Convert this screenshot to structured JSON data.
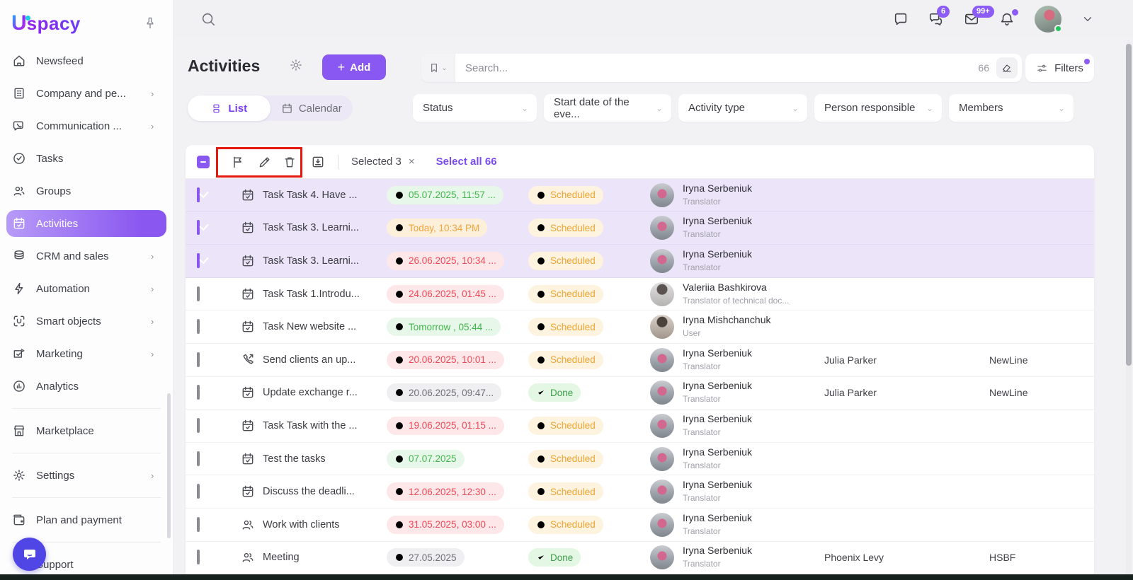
{
  "colors": {
    "accent": "#8957f1",
    "badge": "#8b5cf6",
    "scheduled": "#f0a432",
    "done": "#3da048",
    "date_green": "#41b64c",
    "date_orange": "#f2a33c",
    "date_red": "#ee4956",
    "annotation_red": "#e3180f"
  },
  "brand": {
    "u": "U",
    "rest": "spacy"
  },
  "topbar": {
    "messenger_badge": "6",
    "mail_badge": "99+"
  },
  "sidebar": {
    "items": [
      {
        "label": "Newsfeed",
        "icon": "home",
        "chevron": false
      },
      {
        "label": "Company and pe...",
        "icon": "building",
        "chevron": true
      },
      {
        "label": "Communication ...",
        "icon": "comm",
        "chevron": true
      },
      {
        "label": "Tasks",
        "icon": "check-circle",
        "chevron": false
      },
      {
        "label": "Groups",
        "icon": "users",
        "chevron": false
      },
      {
        "label": "Activities",
        "icon": "cal-check",
        "chevron": false,
        "active": true
      },
      {
        "label": "CRM and sales",
        "icon": "db",
        "chevron": true
      },
      {
        "label": "Automation",
        "icon": "bolt",
        "chevron": true
      },
      {
        "label": "Smart objects",
        "icon": "smart",
        "chevron": true
      },
      {
        "label": "Marketing",
        "icon": "marketing",
        "chevron": true
      },
      {
        "label": "Analytics",
        "icon": "analytics",
        "chevron": false
      },
      {
        "divider": true
      },
      {
        "label": "Marketplace",
        "icon": "store",
        "chevron": false
      },
      {
        "divider": true
      },
      {
        "label": "Settings",
        "icon": "gear",
        "chevron": true
      },
      {
        "divider": true
      },
      {
        "label": "Plan and payment",
        "icon": "wallet",
        "chevron": false
      },
      {
        "divider": true
      },
      {
        "label": "Support",
        "icon": "none",
        "chevron": false
      }
    ]
  },
  "page": {
    "title": "Activities",
    "add_label": "Add",
    "plus": "+"
  },
  "tabs": {
    "list": "List",
    "calendar": "Calendar"
  },
  "search": {
    "placeholder": "Search...",
    "count": "66",
    "filters_label": "Filters"
  },
  "filters": [
    "Status",
    "Start date of the eve...",
    "Activity type",
    "Person responsible",
    "Members"
  ],
  "toolbar": {
    "selected_label": "Selected 3",
    "close": "×",
    "select_all_label": "Select all 66",
    "divider": "|"
  },
  "table": {
    "rows": [
      {
        "selected": true,
        "type": "task",
        "title": "Task Task 4. Have ...",
        "date": "05.07.2025, 11:57 ...",
        "date_color": "green",
        "status": "Scheduled",
        "status_variant": "scheduled",
        "person": "Iryna Serbeniuk",
        "role": "Translator",
        "avatar": "iryna",
        "contact": "",
        "company": ""
      },
      {
        "selected": true,
        "type": "task",
        "title": "Task Task 3. Learni...",
        "date": "Today, 10:34 PM",
        "date_color": "orange",
        "status": "Scheduled",
        "status_variant": "scheduled",
        "person": "Iryna Serbeniuk",
        "role": "Translator",
        "avatar": "iryna",
        "contact": "",
        "company": ""
      },
      {
        "selected": true,
        "type": "task",
        "title": "Task Task 3. Learni...",
        "date": "26.06.2025, 10:34 ...",
        "date_color": "red",
        "status": "Scheduled",
        "status_variant": "scheduled",
        "person": "Iryna Serbeniuk",
        "role": "Translator",
        "avatar": "iryna",
        "contact": "",
        "company": ""
      },
      {
        "selected": false,
        "type": "task",
        "title": "Task Task 1.Introdu...",
        "date": "24.06.2025, 01:45 ...",
        "date_color": "red",
        "status": "Scheduled",
        "status_variant": "scheduled",
        "person": "Valeriia Bashkirova",
        "role": "Translator of technical doc...",
        "avatar": "valeriia",
        "contact": "",
        "company": ""
      },
      {
        "selected": false,
        "type": "task",
        "title": "Task New website ...",
        "date": "Tomorrow , 05:44 ...",
        "date_color": "green",
        "status": "Scheduled",
        "status_variant": "scheduled",
        "person": "Iryna Mishchanchuk",
        "role": "User",
        "avatar": "mish",
        "contact": "",
        "company": ""
      },
      {
        "selected": false,
        "type": "call",
        "title": "Send clients an up...",
        "date": "20.06.2025, 10:01 ...",
        "date_color": "red",
        "status": "Scheduled",
        "status_variant": "scheduled",
        "person": "Iryna Serbeniuk",
        "role": "Translator",
        "avatar": "iryna",
        "contact": "Julia Parker",
        "company": "NewLine"
      },
      {
        "selected": false,
        "type": "task",
        "title": "Update exchange r...",
        "date": "20.06.2025, 09:47...",
        "date_color": "grey",
        "status": "Done",
        "status_variant": "done",
        "person": "Iryna Serbeniuk",
        "role": "Translator",
        "avatar": "iryna",
        "contact": "Julia Parker",
        "company": "NewLine"
      },
      {
        "selected": false,
        "type": "task",
        "title": "Task Task with the ...",
        "date": "19.06.2025, 01:15 ...",
        "date_color": "red",
        "status": "Scheduled",
        "status_variant": "scheduled",
        "person": "Iryna Serbeniuk",
        "role": "Translator",
        "avatar": "iryna",
        "contact": "",
        "company": ""
      },
      {
        "selected": false,
        "type": "task",
        "title": "Test the tasks",
        "date": "07.07.2025",
        "date_color": "green",
        "status": "Scheduled",
        "status_variant": "scheduled",
        "person": "Iryna Serbeniuk",
        "role": "Translator",
        "avatar": "iryna",
        "contact": "",
        "company": ""
      },
      {
        "selected": false,
        "type": "task",
        "title": "Discuss the deadli...",
        "date": "12.06.2025, 12:30 ...",
        "date_color": "red",
        "status": "Scheduled",
        "status_variant": "scheduled",
        "person": "Iryna Serbeniuk",
        "role": "Translator",
        "avatar": "iryna",
        "contact": "",
        "company": ""
      },
      {
        "selected": false,
        "type": "meeting",
        "title": "Work with clients",
        "date": "31.05.2025, 03:00 ...",
        "date_color": "red",
        "status": "Scheduled",
        "status_variant": "scheduled",
        "person": "Iryna Serbeniuk",
        "role": "Translator",
        "avatar": "iryna",
        "contact": "",
        "company": ""
      },
      {
        "selected": false,
        "type": "meeting",
        "title": "Meeting",
        "date": "27.05.2025",
        "date_color": "grey",
        "status": "Done",
        "status_variant": "done",
        "person": "Iryna Serbeniuk",
        "role": "Translator",
        "avatar": "iryna",
        "contact": "Phoenix Levy",
        "company": "HSBF"
      }
    ]
  }
}
